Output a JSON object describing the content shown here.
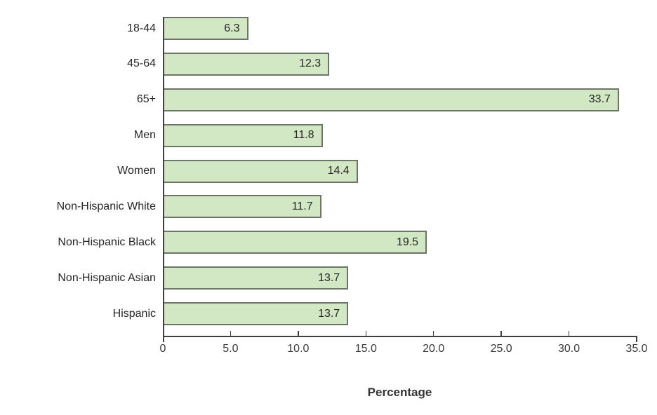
{
  "chart_data": {
    "type": "bar",
    "orientation": "horizontal",
    "title": "",
    "xlabel": "Percentage",
    "ylabel": "",
    "xlim": [
      0,
      35
    ],
    "grid": false,
    "legend": "none",
    "categories": [
      "18-44",
      "45-64",
      "65+",
      "Men",
      "Women",
      "Non-Hispanic White",
      "Non-Hispanic Black",
      "Non-Hispanic Asian",
      "Hispanic"
    ],
    "values": [
      6.3,
      12.3,
      33.7,
      11.8,
      14.4,
      11.7,
      19.5,
      13.7,
      13.7
    ],
    "value_labels": [
      "6.3",
      "12.3",
      "33.7",
      "11.8",
      "14.4",
      "11.7",
      "19.5",
      "13.7",
      "13.7"
    ],
    "x_ticks": [
      {
        "value": 0,
        "label": "0"
      },
      {
        "value": 5,
        "label": "5.0"
      },
      {
        "value": 10,
        "label": "10.0"
      },
      {
        "value": 15,
        "label": "15.0"
      },
      {
        "value": 20,
        "label": "20.0"
      },
      {
        "value": 25,
        "label": "25.0"
      },
      {
        "value": 30,
        "label": "30.0"
      },
      {
        "value": 35,
        "label": "35.0"
      }
    ],
    "colors": {
      "bar_fill": "#d2e7c3",
      "bar_border": "#6e7468",
      "axis": "#3f3f3f",
      "text": "#262626"
    }
  }
}
